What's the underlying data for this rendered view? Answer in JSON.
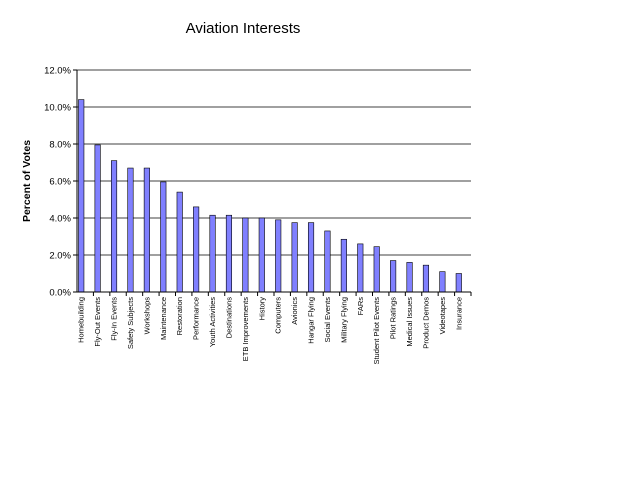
{
  "chart_data": {
    "type": "bar",
    "title": "Aviation Interests",
    "xlabel": "",
    "ylabel": "Percent of Votes",
    "ylim": [
      0,
      12
    ],
    "yticks": [
      0,
      2,
      4,
      6,
      8,
      10,
      12
    ],
    "ytick_labels": [
      "0.0%",
      "2.0%",
      "4.0%",
      "6.0%",
      "8.0%",
      "10.0%",
      "12.0%"
    ],
    "grid": true,
    "legend": "none",
    "bar_color": "#8080ff",
    "categories": [
      "Homebuilding",
      "Fly-Out Events",
      "Fly-In Events",
      "Safety Subjects",
      "Workshops",
      "Maintenance",
      "Restoration",
      "Performance",
      "Youth Activities",
      "Destinations",
      "ETB Improvements",
      "History",
      "Computers",
      "Avionics",
      "Hangar Flying",
      "Social Events",
      "Military Flying",
      "FARs",
      "Student Pilot Events",
      "Pilot Ratings",
      "Medical Issues",
      "Product Demos",
      "Videotapes",
      "Insurance"
    ],
    "values": [
      10.4,
      7.95,
      7.1,
      6.7,
      6.7,
      5.95,
      5.4,
      4.6,
      4.15,
      4.15,
      4.0,
      4.0,
      3.9,
      3.75,
      3.75,
      3.3,
      2.85,
      2.6,
      2.45,
      1.7,
      1.6,
      1.45,
      1.1,
      1.0
    ]
  }
}
